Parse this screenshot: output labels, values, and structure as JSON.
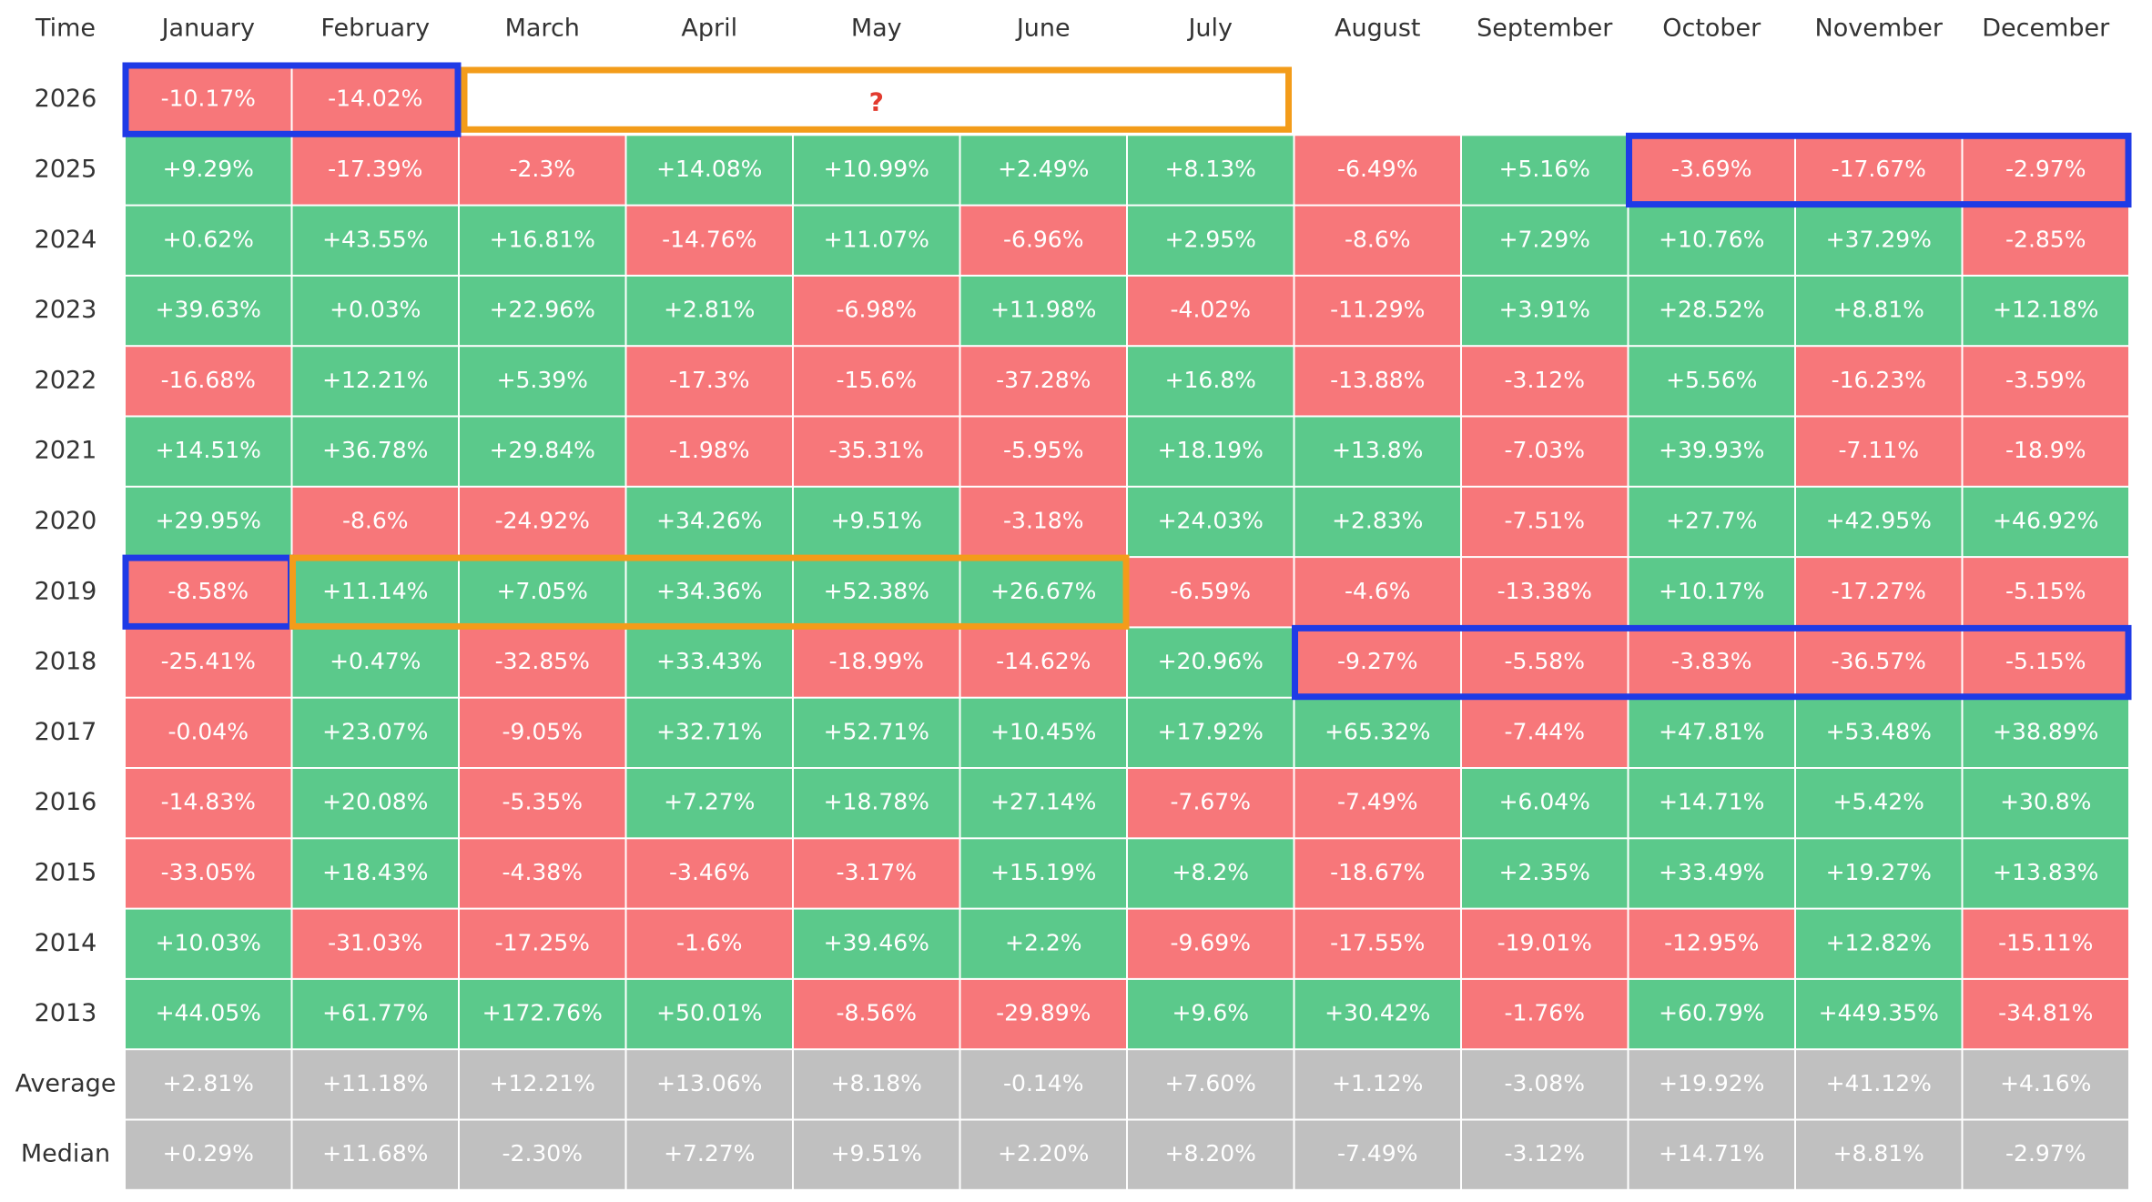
{
  "table": {
    "columns": [
      "Time",
      "January",
      "February",
      "March",
      "April",
      "May",
      "June",
      "July",
      "August",
      "September",
      "October",
      "November",
      "December"
    ],
    "colors": {
      "positive": "#5bc98b",
      "negative": "#f7777a",
      "summary": "#c0c0c0"
    },
    "annotation": "?",
    "rows": [
      {
        "label": "2026",
        "values": [
          "-10.17%",
          "-14.02%",
          null,
          null,
          null,
          null,
          null,
          null,
          null,
          null,
          null,
          null
        ]
      },
      {
        "label": "2025",
        "values": [
          "+9.29%",
          "-17.39%",
          "-2.3%",
          "+14.08%",
          "+10.99%",
          "+2.49%",
          "+8.13%",
          "-6.49%",
          "+5.16%",
          "-3.69%",
          "-17.67%",
          "-2.97%"
        ]
      },
      {
        "label": "2024",
        "values": [
          "+0.62%",
          "+43.55%",
          "+16.81%",
          "-14.76%",
          "+11.07%",
          "-6.96%",
          "+2.95%",
          "-8.6%",
          "+7.29%",
          "+10.76%",
          "+37.29%",
          "-2.85%"
        ]
      },
      {
        "label": "2023",
        "values": [
          "+39.63%",
          "+0.03%",
          "+22.96%",
          "+2.81%",
          "-6.98%",
          "+11.98%",
          "-4.02%",
          "-11.29%",
          "+3.91%",
          "+28.52%",
          "+8.81%",
          "+12.18%"
        ]
      },
      {
        "label": "2022",
        "values": [
          "-16.68%",
          "+12.21%",
          "+5.39%",
          "-17.3%",
          "-15.6%",
          "-37.28%",
          "+16.8%",
          "-13.88%",
          "-3.12%",
          "+5.56%",
          "-16.23%",
          "-3.59%"
        ]
      },
      {
        "label": "2021",
        "values": [
          "+14.51%",
          "+36.78%",
          "+29.84%",
          "-1.98%",
          "-35.31%",
          "-5.95%",
          "+18.19%",
          "+13.8%",
          "-7.03%",
          "+39.93%",
          "-7.11%",
          "-18.9%"
        ]
      },
      {
        "label": "2020",
        "values": [
          "+29.95%",
          "-8.6%",
          "-24.92%",
          "+34.26%",
          "+9.51%",
          "-3.18%",
          "+24.03%",
          "+2.83%",
          "-7.51%",
          "+27.7%",
          "+42.95%",
          "+46.92%"
        ]
      },
      {
        "label": "2019",
        "values": [
          "-8.58%",
          "+11.14%",
          "+7.05%",
          "+34.36%",
          "+52.38%",
          "+26.67%",
          "-6.59%",
          "-4.6%",
          "-13.38%",
          "+10.17%",
          "-17.27%",
          "-5.15%"
        ]
      },
      {
        "label": "2018",
        "values": [
          "-25.41%",
          "+0.47%",
          "-32.85%",
          "+33.43%",
          "-18.99%",
          "-14.62%",
          "+20.96%",
          "-9.27%",
          "-5.58%",
          "-3.83%",
          "-36.57%",
          "-5.15%"
        ]
      },
      {
        "label": "2017",
        "values": [
          "-0.04%",
          "+23.07%",
          "-9.05%",
          "+32.71%",
          "+52.71%",
          "+10.45%",
          "+17.92%",
          "+65.32%",
          "-7.44%",
          "+47.81%",
          "+53.48%",
          "+38.89%"
        ]
      },
      {
        "label": "2016",
        "values": [
          "-14.83%",
          "+20.08%",
          "-5.35%",
          "+7.27%",
          "+18.78%",
          "+27.14%",
          "-7.67%",
          "-7.49%",
          "+6.04%",
          "+14.71%",
          "+5.42%",
          "+30.8%"
        ]
      },
      {
        "label": "2015",
        "values": [
          "-33.05%",
          "+18.43%",
          "-4.38%",
          "-3.46%",
          "-3.17%",
          "+15.19%",
          "+8.2%",
          "-18.67%",
          "+2.35%",
          "+33.49%",
          "+19.27%",
          "+13.83%"
        ]
      },
      {
        "label": "2014",
        "values": [
          "+10.03%",
          "-31.03%",
          "-17.25%",
          "-1.6%",
          "+39.46%",
          "+2.2%",
          "-9.69%",
          "-17.55%",
          "-19.01%",
          "-12.95%",
          "+12.82%",
          "-15.11%"
        ]
      },
      {
        "label": "2013",
        "values": [
          "+44.05%",
          "+61.77%",
          "+172.76%",
          "+50.01%",
          "-8.56%",
          "-29.89%",
          "+9.6%",
          "+30.42%",
          "-1.76%",
          "+60.79%",
          "+449.35%",
          "-34.81%"
        ]
      }
    ],
    "summary_rows": [
      {
        "label": "Average",
        "values": [
          "+2.81%",
          "+11.18%",
          "+12.21%",
          "+13.06%",
          "+8.18%",
          "-0.14%",
          "+7.60%",
          "+1.12%",
          "-3.08%",
          "+19.92%",
          "+41.12%",
          "+4.16%"
        ]
      },
      {
        "label": "Median",
        "values": [
          "+0.29%",
          "+11.68%",
          "-2.30%",
          "+7.27%",
          "+9.51%",
          "+2.20%",
          "+8.20%",
          "-7.49%",
          "-3.12%",
          "+14.71%",
          "+8.81%",
          "-2.97%"
        ]
      }
    ]
  }
}
